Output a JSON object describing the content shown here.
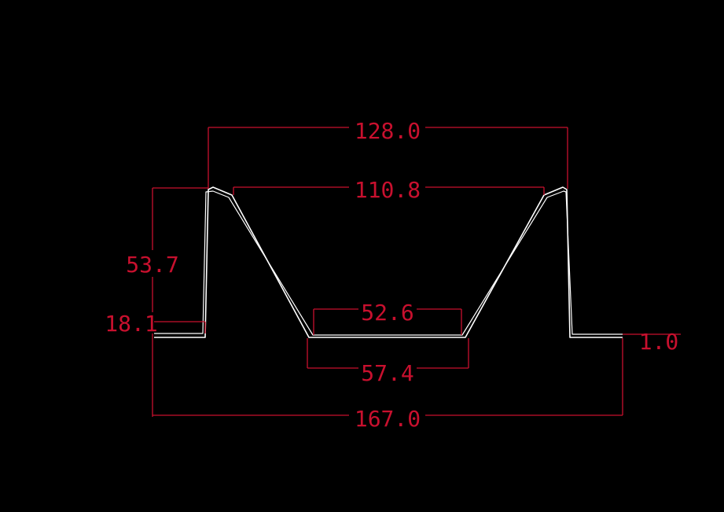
{
  "colors": {
    "background": "#000000",
    "dimension": "#c8102e",
    "profile": "#ffffff"
  },
  "dimensions": {
    "top_width": "128.0",
    "top_inner_width": "110.8",
    "total_height": "53.7",
    "flange_height": "18.1",
    "bottom_inner_width": "52.6",
    "bottom_outer_width": "57.4",
    "thickness": "1.0",
    "total_width": "167.0"
  }
}
